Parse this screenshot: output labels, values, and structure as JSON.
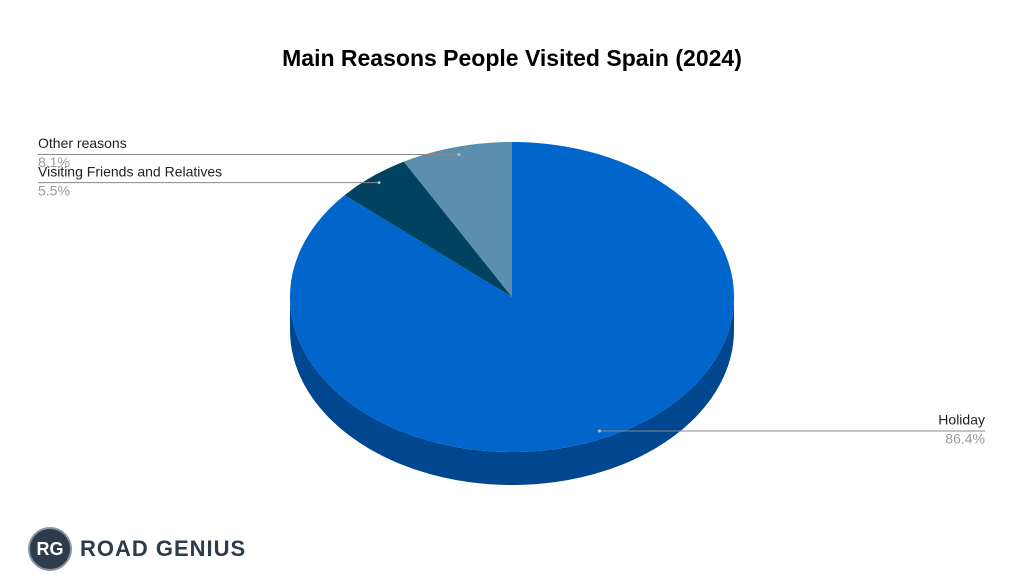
{
  "chart_data": {
    "type": "pie",
    "title": "Main Reasons People Visited Spain (2024)",
    "categories": [
      "Holiday",
      "Visiting Friends and Relatives",
      "Other reasons"
    ],
    "values": [
      86.4,
      5.5,
      8.1
    ],
    "value_labels": [
      "86.4%",
      "5.5%",
      "8.1%"
    ],
    "colors": [
      "#0066cc",
      "#00425f",
      "#5b8fad"
    ]
  },
  "logo": {
    "mark": "RG",
    "text": "ROAD GENIUS"
  }
}
